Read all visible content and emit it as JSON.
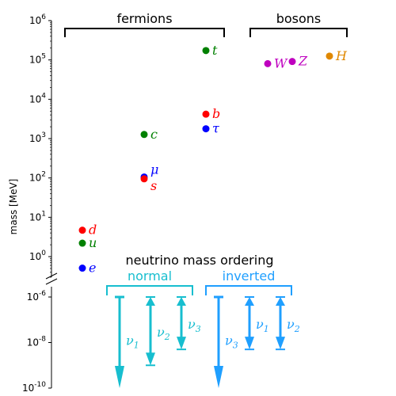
{
  "chart_data": [
    {
      "type": "scatter",
      "yscale": "log",
      "ylim": [
        0.3,
        1000000
      ],
      "ylabel": "mass [MeV]",
      "yticks": [
        {
          "value": 1,
          "label": "10^0"
        },
        {
          "value": 10,
          "label": "10^1"
        },
        {
          "value": 100,
          "label": "10^2"
        },
        {
          "value": 1000,
          "label": "10^3"
        },
        {
          "value": 10000,
          "label": "10^4"
        },
        {
          "value": 100000,
          "label": "10^5"
        },
        {
          "value": 1000000,
          "label": "10^6"
        }
      ],
      "groups": [
        {
          "label": "fermions"
        },
        {
          "label": "bosons"
        }
      ],
      "points": [
        {
          "label": "e",
          "mass": 0.511,
          "color": "#0000ff",
          "column": 1
        },
        {
          "label": "u",
          "mass": 2.2,
          "color": "#008000",
          "column": 1
        },
        {
          "label": "d",
          "mass": 4.7,
          "color": "#ff0000",
          "column": 1
        },
        {
          "label": "μ",
          "mass": 105.7,
          "color": "#0000ff",
          "column": 2
        },
        {
          "label": "s",
          "mass": 95,
          "color": "#ff0000",
          "column": 2
        },
        {
          "label": "c",
          "mass": 1275,
          "color": "#008000",
          "column": 2
        },
        {
          "label": "τ",
          "mass": 1777,
          "color": "#0000ff",
          "column": 3
        },
        {
          "label": "b",
          "mass": 4180,
          "color": "#ff0000",
          "column": 3
        },
        {
          "label": "t",
          "mass": 173000,
          "color": "#008000",
          "column": 3
        },
        {
          "label": "W",
          "mass": 80400,
          "color": "#bf00bf",
          "column": 4
        },
        {
          "label": "Z",
          "mass": 91200,
          "color": "#bf00bf",
          "column": 5
        },
        {
          "label": "H",
          "mass": 125000,
          "color": "#e08800",
          "column": 6
        }
      ]
    },
    {
      "type": "diagram",
      "title": "neutrino mass ordering",
      "yscale": "log",
      "ylim": [
        1e-10,
        1e-06
      ],
      "yticks": [
        {
          "value": 1e-06,
          "label": "10^-6"
        },
        {
          "value": 1e-08,
          "label": "10^-8"
        },
        {
          "value": 1e-10,
          "label": "10^-10"
        }
      ],
      "orderings": [
        {
          "label": "normal",
          "color": "#17becf",
          "arrows": [
            {
              "label": "ν1",
              "subscript": "1",
              "low": 1e-10,
              "style": "down"
            },
            {
              "label": "ν2",
              "subscript": "2",
              "low": 1e-09,
              "style": "both"
            },
            {
              "label": "ν3",
              "subscript": "3",
              "low": 5e-09,
              "style": "both"
            }
          ]
        },
        {
          "label": "inverted",
          "color": "#1f9fff",
          "arrows": [
            {
              "label": "ν3",
              "subscript": "3",
              "low": 1e-10,
              "style": "down"
            },
            {
              "label": "ν1",
              "subscript": "1",
              "low": 5e-09,
              "style": "both"
            },
            {
              "label": "ν2",
              "subscript": "2",
              "low": 5e-09,
              "style": "both"
            }
          ]
        }
      ]
    }
  ]
}
